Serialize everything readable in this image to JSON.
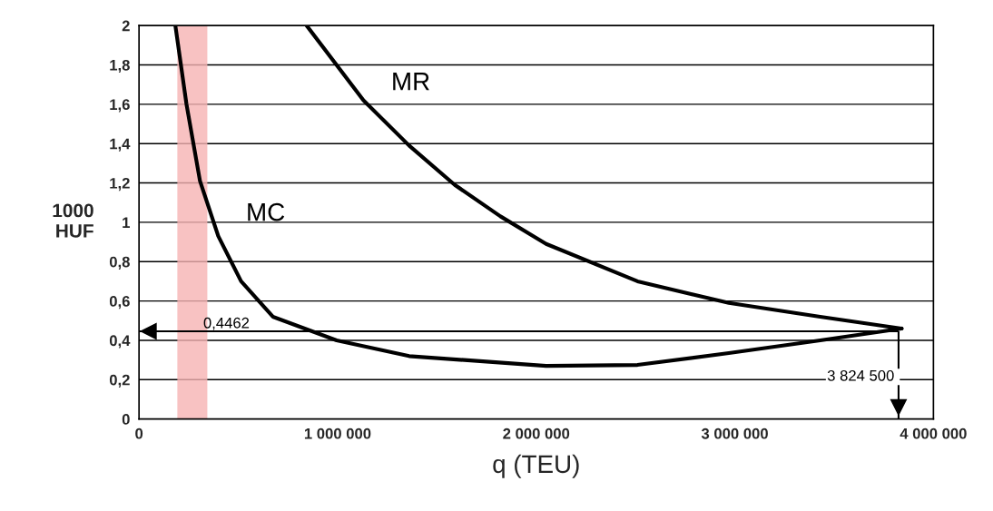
{
  "chart_data": {
    "type": "line",
    "xlabel": "q (TEU)",
    "ylabel": "1000\nHUF",
    "xlim": [
      0,
      4000000
    ],
    "xticks": [
      {
        "value": 0,
        "label": "0"
      },
      {
        "value": 1000000,
        "label": "1 000 000"
      },
      {
        "value": 2000000,
        "label": "2 000 000"
      },
      {
        "value": 3000000,
        "label": "3 000 000"
      },
      {
        "value": 4000000,
        "label": "4 000 000"
      }
    ],
    "ylim": [
      0,
      2
    ],
    "yticks": [
      {
        "value": 0,
        "label": "0"
      },
      {
        "value": 0.2,
        "label": "0,2"
      },
      {
        "value": 0.4,
        "label": "0,4"
      },
      {
        "value": 0.6,
        "label": "0,6"
      },
      {
        "value": 0.8,
        "label": "0,8"
      },
      {
        "value": 1,
        "label": "1"
      },
      {
        "value": 1.2,
        "label": "1,2"
      },
      {
        "value": 1.4,
        "label": "1,4"
      },
      {
        "value": 1.6,
        "label": "1,6"
      },
      {
        "value": 1.8,
        "label": "1,8"
      },
      {
        "value": 2,
        "label": "2"
      }
    ],
    "grid": "y",
    "marker": "none",
    "line_style": "solid",
    "series": [
      {
        "name": "MC",
        "color": "#000000",
        "x": [
          183000,
          239000,
          307000,
          399000,
          514000,
          674000,
          995000,
          1360000,
          2050000,
          2510000,
          2970000,
          3430000,
          3840000
        ],
        "values": [
          2.0,
          1.6,
          1.21,
          0.93,
          0.7,
          0.52,
          0.4,
          0.32,
          0.27,
          0.275,
          0.335,
          0.4,
          0.46
        ]
      },
      {
        "name": "MR",
        "color": "#000000",
        "x": [
          844000,
          1130000,
          1360000,
          1590000,
          1820000,
          2050000,
          2510000,
          2970000,
          3430000,
          3840000
        ],
        "values": [
          2.0,
          1.62,
          1.39,
          1.19,
          1.03,
          0.89,
          0.7,
          0.59,
          0.52,
          0.46
        ]
      }
    ],
    "ref_lines": [
      {
        "axis": "y",
        "value": 0.4462,
        "label": "0,4462",
        "color": "#000000"
      },
      {
        "axis": "x",
        "value": 3824500,
        "label": "3 824 500",
        "color": "#000000"
      }
    ],
    "bands": [
      {
        "axis": "x",
        "from": 193000,
        "to": 344000,
        "color": "#f6b3b3"
      }
    ]
  }
}
